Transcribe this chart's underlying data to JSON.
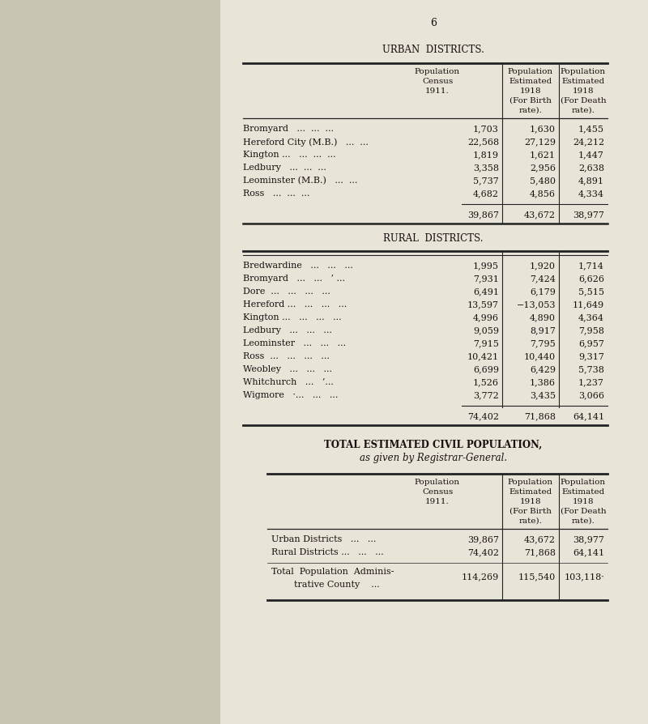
{
  "page_number": "6",
  "urban_title": "URBAN  DISTRICTS.",
  "rural_title": "RURAL  DISTRICTS.",
  "total_title": "TOTAL ESTIMATED CIVIL POPULATION,",
  "total_subtitle": "as given by Registrar-General.",
  "col_headers_line1": [
    "Population",
    "Population",
    "Population"
  ],
  "col_headers_line2": [
    "Census",
    "Estimated",
    "Estimated"
  ],
  "col_headers_line3": [
    "1911.",
    "1918",
    "1918"
  ],
  "col_headers_line4": [
    "",
    "(For Birth",
    "(For Death"
  ],
  "col_headers_line5": [
    "",
    "rate).",
    "rate)."
  ],
  "urban_rows": [
    [
      "Bromyard",
      "...",
      "...",
      "...",
      "1,703",
      "1,630",
      "1,455"
    ],
    [
      "Hereford City (M.B.)",
      "...",
      "...",
      "",
      "22,568",
      "27,129",
      "24,212"
    ],
    [
      "Kington ...",
      "...",
      "...",
      "...",
      "1,819",
      "1,621",
      "1,447"
    ],
    [
      "Ledbury",
      "...",
      "...",
      "...",
      "3,358",
      "2,956",
      "2,638"
    ],
    [
      "Leominster (M.B.)",
      "...",
      "...",
      "",
      "5,737",
      "5,480",
      "4,891"
    ],
    [
      "Ross",
      "...",
      "...",
      "...",
      "4,682",
      "4,856",
      "4,334"
    ]
  ],
  "urban_totals": [
    "39,867",
    "43,672",
    "38,977"
  ],
  "rural_rows": [
    [
      "Bredwardine",
      "...",
      "...",
      "...",
      "1,995",
      "1,920",
      "1,714"
    ],
    [
      "Bromyard",
      "...",
      "...",
      "’ ...",
      "7,931",
      "7,424",
      "6,626"
    ],
    [
      "Dore  ...",
      "...",
      "...",
      "...",
      "6,491",
      "6,179",
      "5,515"
    ],
    [
      "Hereford ...",
      "...",
      "...",
      "...",
      "13,597",
      "−13,053",
      "11,649"
    ],
    [
      "Kington ...",
      "...",
      "...",
      "...",
      "4,996",
      "4,890",
      "4,364"
    ],
    [
      "Ledbury",
      "...",
      "...",
      "...",
      "9,059",
      "8,917",
      "7,958"
    ],
    [
      "Leominster",
      "...",
      "...",
      "...",
      "7,915",
      "7,795",
      "6,957"
    ],
    [
      "Ross  ...",
      "...",
      "...",
      "...",
      "10,421",
      "10,440",
      "9,317"
    ],
    [
      "Weobley",
      "...",
      "...",
      "...",
      "6,699",
      "6,429",
      "5,738"
    ],
    [
      "Whitchurch",
      "...",
      "’...",
      "",
      "1,526",
      "1,386",
      "1,237"
    ],
    [
      "Wigmore",
      "·...",
      "...",
      "...",
      "3,772",
      "3,435",
      "3,066"
    ]
  ],
  "rural_totals": [
    "74,402",
    "71,868",
    "64,141"
  ],
  "summary_rows": [
    [
      "Urban Districts",
      "...",
      "...",
      "39,867",
      "43,672",
      "38,977"
    ],
    [
      "Rural Districts ...",
      "...",
      "...",
      "74,402",
      "71,868",
      "64,141"
    ]
  ],
  "summary_total_label1": "Total  Population  Adminis-",
  "summary_total_label2": "        trative County    ...",
  "summary_total_values": [
    "114,269",
    "115,540",
    "103,118·"
  ],
  "bg_color": "#e8e4d8",
  "left_bg": "#c8c4b4",
  "text_color": "#1a1010",
  "line_color": "#222222"
}
